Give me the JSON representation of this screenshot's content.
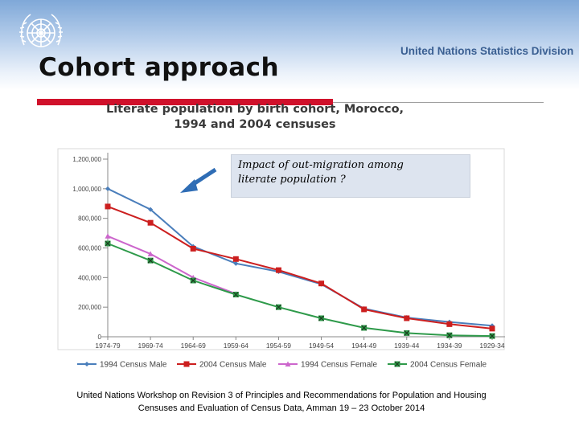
{
  "header": {
    "title": "Cohort approach",
    "org": "United Nations Statistics Division"
  },
  "annotation": {
    "line1": "Impact of out-migration among",
    "line2": "literate population ?"
  },
  "footer": {
    "line1": "United Nations Workshop on  Revision 3 of Principles and Recommendations for Population and Housing",
    "line2": "Censuses and Evaluation of Census Data, Amman 19 – 23 October 2014"
  },
  "colors": {
    "male1994": "#4a7ebb",
    "male2004": "#cc1f1f",
    "female1994": "#cc66cc",
    "female2004": "#2e9a4a",
    "accent_red": "#d0112b"
  },
  "chart_data": {
    "type": "line",
    "title_line1": "Literate population by birth cohort, Morocco,",
    "title_line2": "1994 and 2004 censuses",
    "categories": [
      "1974-79",
      "1969-74",
      "1964-69",
      "1959-64",
      "1954-59",
      "1949-54",
      "1944-49",
      "1939-44",
      "1934-39",
      "1929-34"
    ],
    "ylim": [
      0,
      1200000
    ],
    "yticks": [
      {
        "value": 0,
        "label": "0"
      },
      {
        "value": 200000,
        "label": "200,000"
      },
      {
        "value": 400000,
        "label": "400,000"
      },
      {
        "value": 600000,
        "label": "600,000"
      },
      {
        "value": 800000,
        "label": "800,000"
      },
      {
        "value": 1000000,
        "label": "1,000,000"
      },
      {
        "value": 1200000,
        "label": "1,200,000"
      }
    ],
    "series": [
      {
        "name": "1994 Census Male",
        "color": "#4a7ebb",
        "marker": "diamond",
        "values": [
          1000000,
          860000,
          610000,
          495000,
          440000,
          355000,
          190000,
          130000,
          100000,
          75000
        ]
      },
      {
        "name": "2004 Census Male",
        "color": "#cc1f1f",
        "marker": "square",
        "values": [
          880000,
          770000,
          595000,
          525000,
          450000,
          360000,
          185000,
          125000,
          85000,
          55000
        ]
      },
      {
        "name": "1994 Census Female",
        "color": "#cc66cc",
        "marker": "triangle",
        "values": [
          680000,
          560000,
          400000,
          290000,
          null,
          null,
          null,
          null,
          null,
          null
        ]
      },
      {
        "name": "2004 Census Female",
        "color": "#2e9a4a",
        "marker": "xsquare",
        "values": [
          630000,
          515000,
          380000,
          285000,
          200000,
          125000,
          60000,
          25000,
          10000,
          5000
        ]
      }
    ]
  }
}
